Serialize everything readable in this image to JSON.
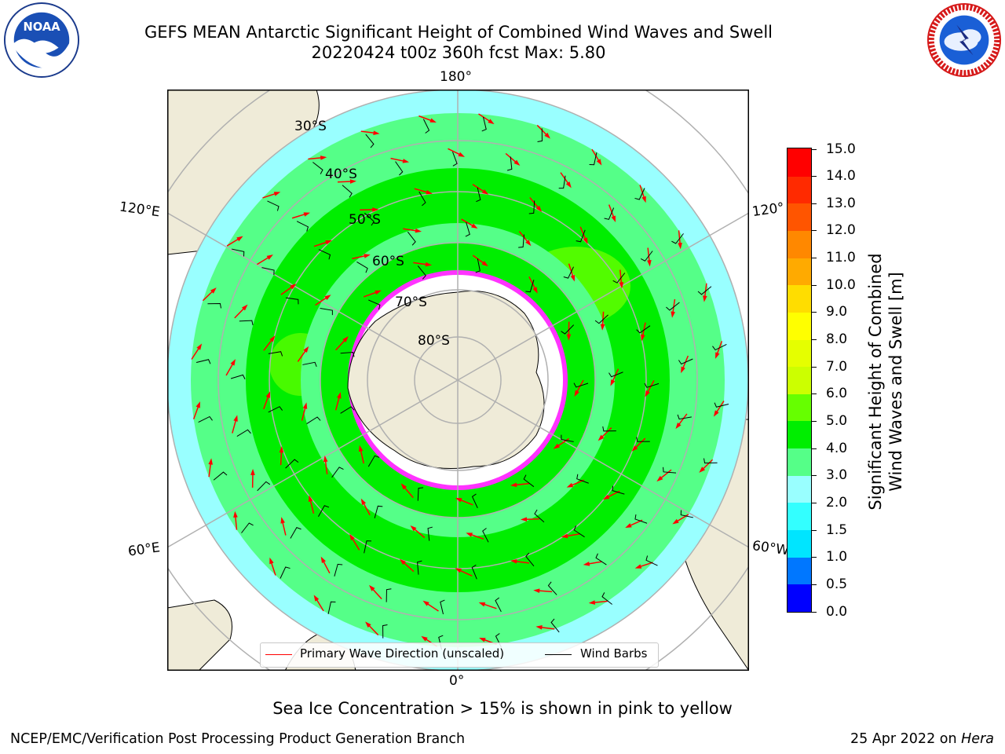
{
  "title": {
    "line1": "GEFS MEAN Antarctic Significant Height of Combined Wind Waves and Swell",
    "line2": "20220424 t00z 360h fcst   Max: 5.80"
  },
  "logos": {
    "noaa": {
      "text": "NOAA",
      "icon": "noaa-logo-icon"
    },
    "nws": {
      "icon": "nws-logo-icon"
    }
  },
  "map": {
    "projection": "south-polar-stereographic",
    "longitude_labels": {
      "top": "180°",
      "bottom": "0°",
      "left_upper": "120°E",
      "left_lower": "60°E",
      "right_upper": "120°",
      "right_lower": "60°W"
    },
    "latitude_labels": [
      "30°S",
      "40°S",
      "50°S",
      "60°S",
      "70°S",
      "80°S"
    ],
    "colors": {
      "land": "#efebd8",
      "ocean_no_data": "#ffffff",
      "grid": "#b0b0b0",
      "wave_arrow": "#ff0000",
      "wind_barb": "#000000",
      "sea_ice_edge": "#ff33ff"
    }
  },
  "legend": {
    "items": [
      {
        "label": "Primary Wave Direction (unscaled)",
        "color": "#ff0000"
      },
      {
        "label": "Wind Barbs",
        "color": "#000000"
      }
    ]
  },
  "colorbar": {
    "title_line1": "Significant Height of Combined",
    "title_line2": "Wind Waves and Swell [m]",
    "ticks": [
      "0.0",
      "0.5",
      "1.0",
      "1.5",
      "2.0",
      "3.0",
      "4.0",
      "5.0",
      "6.0",
      "7.0",
      "8.0",
      "9.0",
      "10.0",
      "11.0",
      "12.0",
      "13.0",
      "14.0",
      "15.0"
    ],
    "colors": [
      "#0000ff",
      "#0077ff",
      "#00e5ff",
      "#33ffff",
      "#99ffff",
      "#55ff88",
      "#00ee00",
      "#66ff00",
      "#ccff00",
      "#e5ff00",
      "#ffff00",
      "#ffdd00",
      "#ffaa00",
      "#ff8800",
      "#ff5500",
      "#ff2a00",
      "#ff0000"
    ]
  },
  "caption": "Sea Ice Concentration > 15% is shown in pink to yellow",
  "footer": {
    "left": "NCEP/EMC/Verification Post Processing Product Generation Branch",
    "right_date": "25 Apr 2022 on ",
    "right_host": "Hera"
  }
}
